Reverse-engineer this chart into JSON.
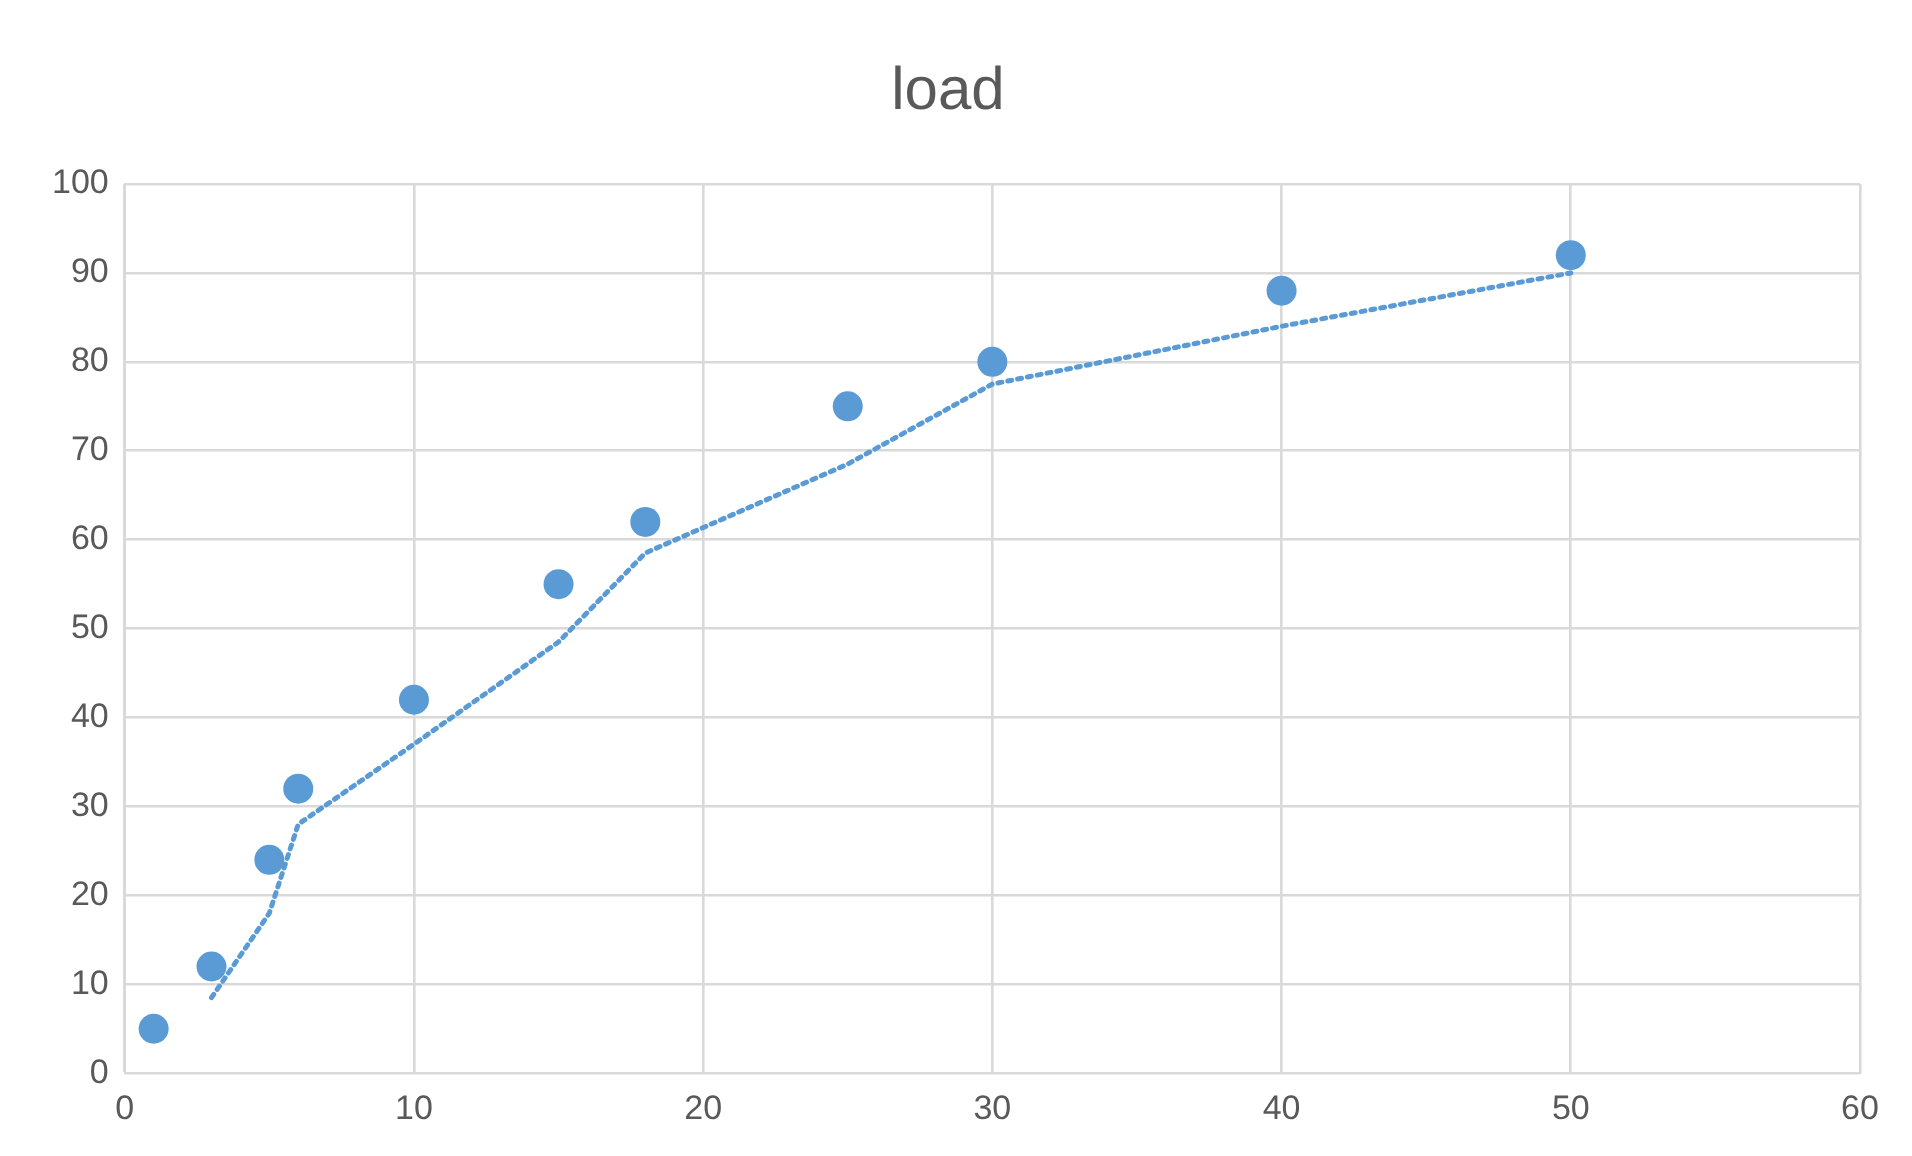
{
  "chart_data": {
    "type": "scatter",
    "title": "load",
    "xlim": [
      0,
      60
    ],
    "xticks": [
      0,
      10,
      20,
      30,
      40,
      50,
      60
    ],
    "ylim": [
      0,
      100
    ],
    "yticks": [
      0,
      10,
      20,
      30,
      40,
      50,
      60,
      70,
      80,
      90,
      100
    ],
    "grid": true,
    "series": [
      {
        "color": "#5b9bd5",
        "marker": "circle",
        "x": [
          1,
          3,
          5,
          6,
          10,
          15,
          18,
          25,
          30,
          40,
          50
        ],
        "values": [
          5,
          12,
          24,
          32,
          42,
          55,
          62,
          75,
          80,
          88,
          92
        ]
      },
      {
        "type": "line",
        "color": "#5b9bd5",
        "marker": "none",
        "line_style": "dotted",
        "x": [
          3,
          5,
          6,
          10,
          15,
          18,
          25,
          30,
          40,
          50
        ],
        "values": [
          8.5,
          18,
          28,
          37,
          48.5,
          58.5,
          68.5,
          77.5,
          84,
          90
        ]
      }
    ]
  }
}
